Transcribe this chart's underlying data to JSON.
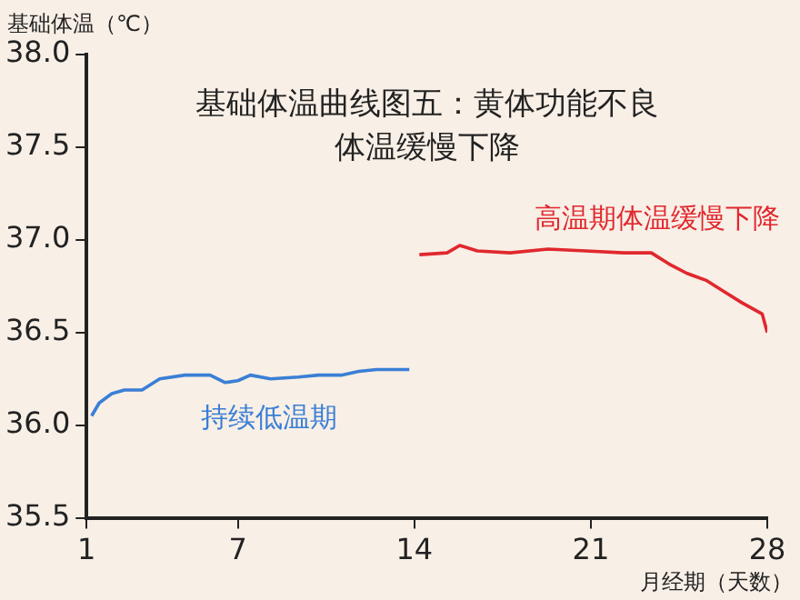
{
  "chart_data": {
    "type": "line",
    "title": "基础体温曲线图五：黄体功能不良",
    "subtitle": "体温缓慢下降",
    "ylabel": "基础体温（℃）",
    "xlabel": "月经期（天数）",
    "series": [
      {
        "type": "line",
        "color": "#3a7fd5",
        "x": [
          1.2,
          1.5,
          2.0,
          2.5,
          3.2,
          3.9,
          4.9,
          5.9,
          6.5,
          7.0,
          7.5,
          8.3,
          9.4,
          10.2,
          11.1,
          11.8,
          12.5,
          13.8
        ],
        "values": [
          36.05,
          36.12,
          36.17,
          36.19,
          36.19,
          36.25,
          36.27,
          36.27,
          36.23,
          36.24,
          36.27,
          36.25,
          36.26,
          36.27,
          36.27,
          36.29,
          36.3,
          36.3
        ]
      },
      {
        "type": "line",
        "color": "#e0282e",
        "x": [
          14.2,
          15.3,
          15.8,
          16.5,
          17.8,
          19.3,
          20.8,
          22.3,
          23.4,
          24.1,
          24.8,
          25.6,
          26.3,
          27.0,
          27.8,
          28.0
        ],
        "values": [
          36.92,
          36.93,
          36.97,
          36.94,
          36.93,
          36.95,
          36.94,
          36.93,
          36.93,
          36.87,
          36.82,
          36.78,
          36.72,
          36.66,
          36.6,
          36.5
        ]
      }
    ],
    "annotations": [
      "持续低温期",
      "高温期体温缓慢下降"
    ],
    "xlim": [
      1,
      28
    ],
    "xticks": [
      1,
      7,
      14,
      21,
      28
    ],
    "ylim": [
      35.5,
      38
    ],
    "yticks": [
      {
        "value": 35.5,
        "label": "35.5"
      },
      {
        "value": 36,
        "label": "36.0"
      },
      {
        "value": 36.5,
        "label": "36.5"
      },
      {
        "value": 37,
        "label": "37.0"
      },
      {
        "value": 37.5,
        "label": "37.5"
      },
      {
        "value": 38,
        "label": "38.0"
      }
    ],
    "grid": false,
    "legend": false,
    "marker": "none",
    "line_style": "solid"
  }
}
